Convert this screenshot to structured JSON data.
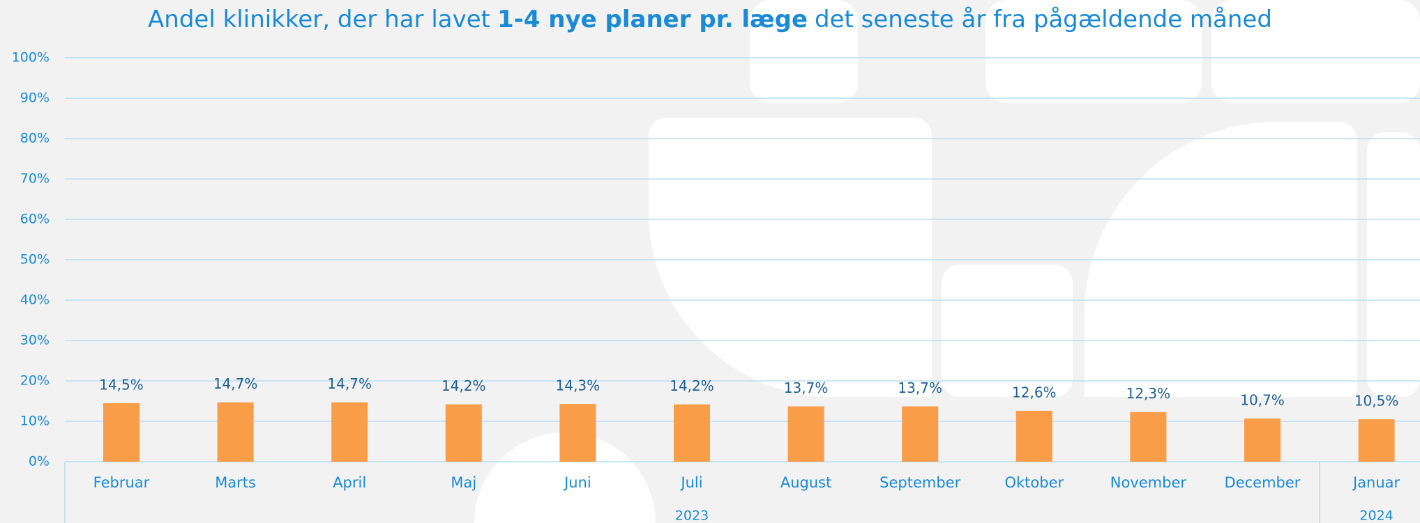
{
  "chart_data": {
    "type": "bar",
    "title": [
      "Andel klinikker, der har lavet",
      "1-4 nye planer pr. læge",
      "det seneste år fra pågældende måned"
    ],
    "categories": [
      "Februar",
      "Marts",
      "April",
      "Maj",
      "Juni",
      "Juli",
      "August",
      "September",
      "Oktober",
      "November",
      "December",
      "Januar"
    ],
    "values": [
      14.5,
      14.7,
      14.7,
      14.2,
      14.3,
      14.2,
      13.7,
      13.7,
      12.6,
      12.3,
      10.7,
      10.5
    ],
    "value_labels": [
      "14,5%",
      "14,7%",
      "14,7%",
      "14,2%",
      "14,3%",
      "14,2%",
      "13,7%",
      "13,7%",
      "12,6%",
      "12,3%",
      "10,7%",
      "10,5%"
    ],
    "year_labels": [
      "2023",
      "2024"
    ],
    "color": "#f99d48",
    "ylim": [
      0,
      100
    ],
    "yticks": [
      {
        "value": 0,
        "label": "0%"
      },
      {
        "value": 10,
        "label": "10%"
      },
      {
        "value": 20,
        "label": "20%"
      },
      {
        "value": 30,
        "label": "30%"
      },
      {
        "value": 40,
        "label": "40%"
      },
      {
        "value": 50,
        "label": "50%"
      },
      {
        "value": 60,
        "label": "60%"
      },
      {
        "value": 70,
        "label": "70%"
      },
      {
        "value": 80,
        "label": "80%"
      },
      {
        "value": 90,
        "label": "90%"
      },
      {
        "value": 100,
        "label": "100%"
      }
    ],
    "grid": true
  }
}
